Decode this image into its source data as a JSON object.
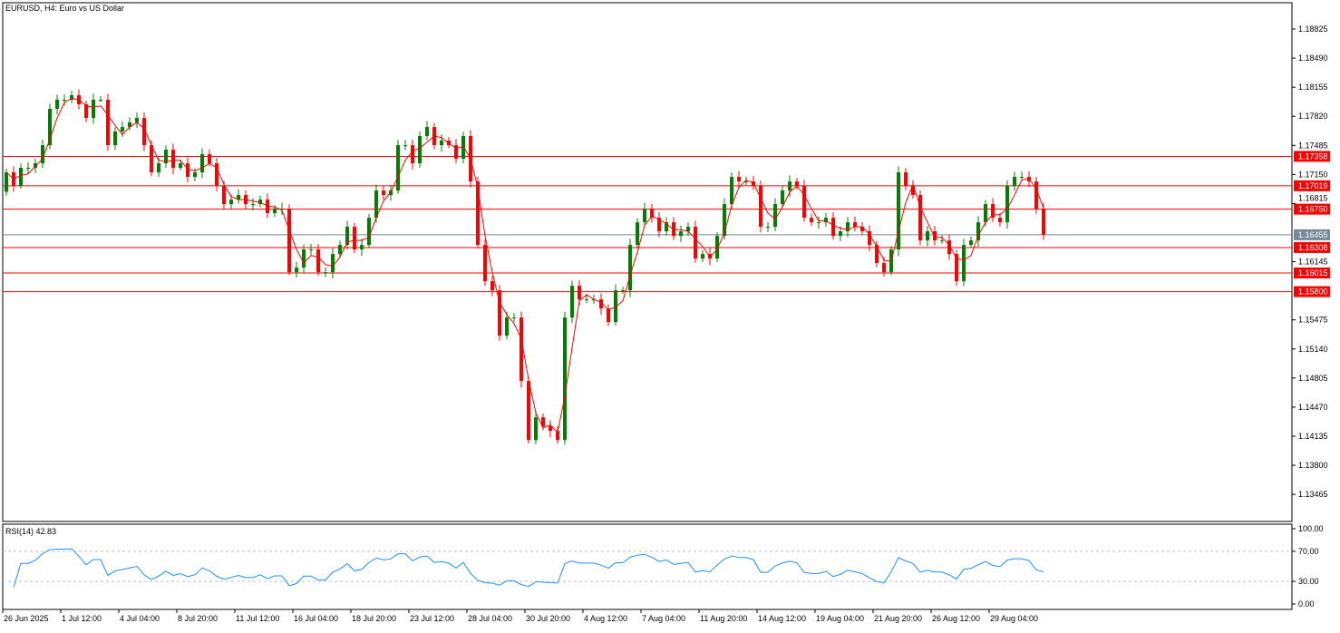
{
  "header": {
    "title": "EURUSD, H4:  Euro vs US Dollar"
  },
  "colors": {
    "bull": "#008000",
    "bear": "#ff0000",
    "ma": "#ff0000",
    "level": "#ff0000",
    "current": "#778899",
    "rsi": "#1e90ff",
    "grid": "#c0c0c0"
  },
  "chart_data": [
    {
      "type": "candlestick",
      "symbol": "EURUSD",
      "timeframe": "H4",
      "title": "EURUSD, H4:  Euro vs US Dollar",
      "ylim": [
        1.1317,
        1.1912
      ],
      "y_ticks": [
        "1.18825",
        "1.18490",
        "1.18155",
        "1.17820",
        "1.17485",
        "1.17150",
        "1.16815",
        "1.16145",
        "1.15475",
        "1.15140",
        "1.14805",
        "1.14470",
        "1.14135",
        "1.13800",
        "1.13465"
      ],
      "x_ticks": [
        "26 Jun 2025",
        "1 Jul 12:00",
        "4 Jul 04:00",
        "8 Jul 20:00",
        "11 Jul 12:00",
        "16 Jul 04:00",
        "18 Jul 20:00",
        "23 Jul 12:00",
        "28 Jul 04:00",
        "30 Jul 20:00",
        "4 Aug 12:00",
        "7 Aug 04:00",
        "11 Aug 20:00",
        "14 Aug 12:00",
        "19 Aug 04:00",
        "21 Aug 20:00",
        "26 Aug 12:00",
        "29 Aug 04:00"
      ],
      "levels": [
        "1.17358",
        "1.17019",
        "1.16750",
        "1.16308",
        "1.16015",
        "1.15800"
      ],
      "current_price": "1.16455",
      "closes": [
        1.17174,
        1.17017,
        1.17226,
        1.17226,
        1.17278,
        1.17487,
        1.17905,
        1.1801,
        1.1801,
        1.18062,
        1.17958,
        1.17801,
        1.1801,
        1.1801,
        1.17487,
        1.17644,
        1.17696,
        1.17749,
        1.17801,
        1.17487,
        1.17174,
        1.17278,
        1.17435,
        1.17226,
        1.17278,
        1.17122,
        1.17174,
        1.17383,
        1.17278,
        1.17017,
        1.16808,
        1.1686,
        1.16913,
        1.16808,
        1.16808,
        1.1686,
        1.16704,
        1.16756,
        1.16756,
        1.16024,
        1.16077,
        1.16286,
        1.16286,
        1.16024,
        1.16024,
        1.16233,
        1.16338,
        1.16547,
        1.16286,
        1.16338,
        1.16651,
        1.16965,
        1.16913,
        1.16965,
        1.17487,
        1.17487,
        1.17278,
        1.17592,
        1.17696,
        1.17487,
        1.1754,
        1.17487,
        1.17331,
        1.17592,
        1.17069,
        1.16338,
        1.1592,
        1.15815,
        1.15293,
        1.15502,
        1.15502,
        1.1477,
        1.14091,
        1.14352,
        1.14248,
        1.14196,
        1.14091,
        1.15502,
        1.15868,
        1.15711,
        1.15711,
        1.15711,
        1.15606,
        1.1545,
        1.15815,
        1.15815,
        1.16338,
        1.16599,
        1.16756,
        1.16651,
        1.16495,
        1.16599,
        1.16442,
        1.16495,
        1.16547,
        1.16181,
        1.16233,
        1.16181,
        1.16442,
        1.16808,
        1.17122,
        1.17069,
        1.17069,
        1.17017,
        1.16547,
        1.16547,
        1.16808,
        1.16965,
        1.17069,
        1.17017,
        1.16651,
        1.16599,
        1.16599,
        1.16651,
        1.16442,
        1.16495,
        1.16599,
        1.16547,
        1.16495,
        1.16338,
        1.16129,
        1.16024,
        1.16286,
        1.17174,
        1.17017,
        1.16913,
        1.1639,
        1.16495,
        1.1639,
        1.1639,
        1.16233,
        1.1592,
        1.16338,
        1.1639,
        1.16599,
        1.16808,
        1.16651,
        1.16599,
        1.17017,
        1.17122,
        1.17122,
        1.17069,
        1.16756,
        1.16455
      ]
    },
    {
      "type": "line",
      "indicator": "RSI(14)",
      "label": "RSI(14) 42.83",
      "last_value": 42.83,
      "ylim": [
        0,
        100
      ],
      "y_ticks": [
        "100.00",
        "70.00",
        "30.00",
        "0.00"
      ],
      "levels": [
        70,
        30
      ]
    }
  ]
}
